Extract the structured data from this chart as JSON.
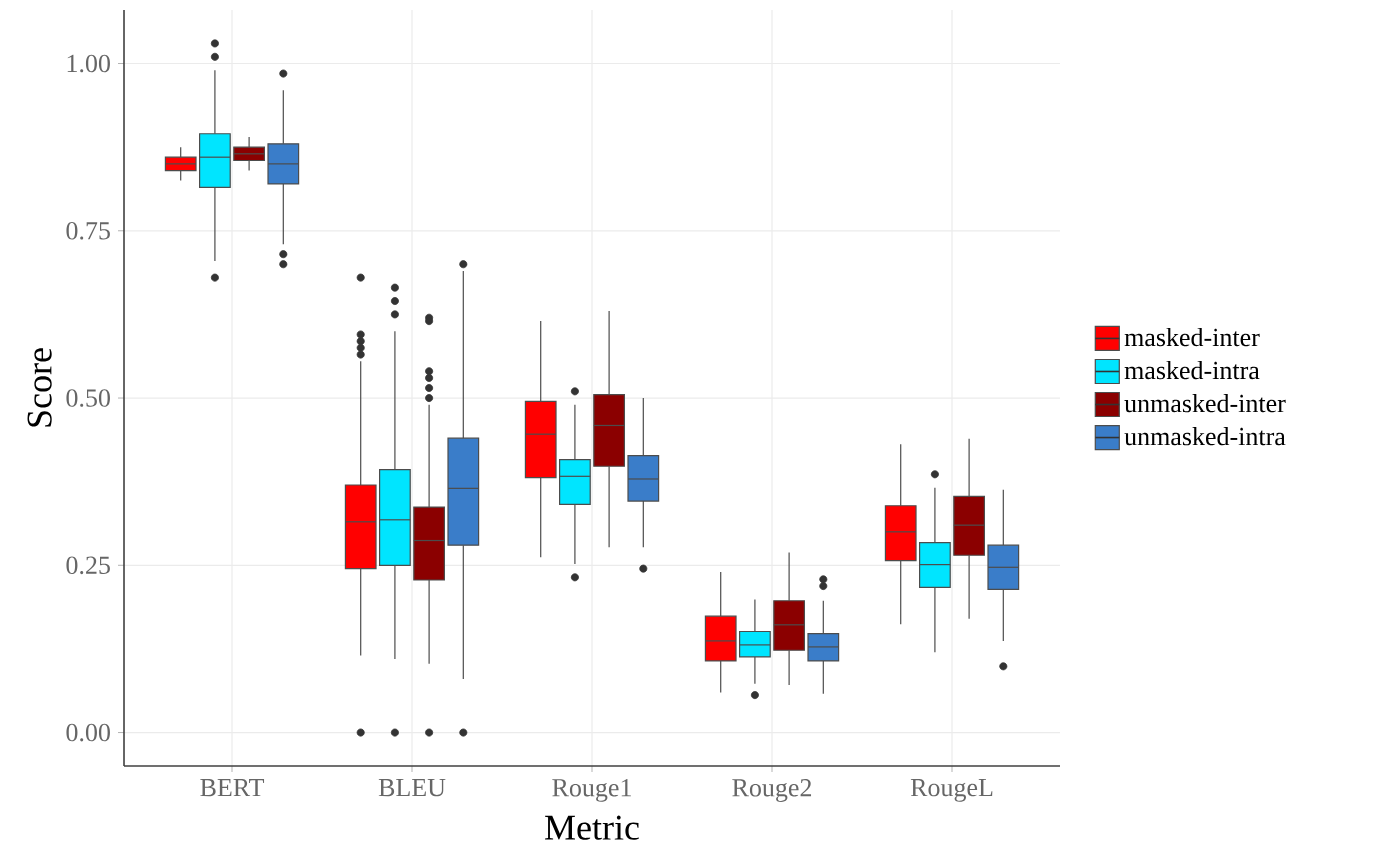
{
  "chart_data": {
    "type": "box",
    "xlabel": "Metric",
    "ylabel": "Score",
    "categories": [
      "BERT",
      "BLEU",
      "Rouge1",
      "Rouge2",
      "RougeL"
    ],
    "ylim": [
      -0.05,
      1.08
    ],
    "yticks": [
      {
        "value": 0,
        "label": "0.00"
      },
      {
        "value": 0.25,
        "label": "0.25"
      },
      {
        "value": 0.5,
        "label": "0.50"
      },
      {
        "value": 0.75,
        "label": "0.75"
      },
      {
        "value": 1,
        "label": "1.00"
      }
    ],
    "grid": true,
    "legend": "right",
    "series": [
      {
        "name": "masked-inter",
        "color": "#ff0000",
        "boxes": [
          {
            "low": 0.825,
            "q1": 0.84,
            "median": 0.85,
            "q3": 0.86,
            "high": 0.875
          },
          {
            "low": 0.115,
            "q1": 0.245,
            "median": 0.315,
            "q3": 0.37,
            "high": 0.555,
            "outliers": [
              0.68,
              0.595,
              0.585,
              0.575,
              0.565,
              0
            ]
          },
          {
            "low": 0.262,
            "q1": 0.381,
            "median": 0.446,
            "q3": 0.495,
            "high": 0.615
          },
          {
            "low": 0.06,
            "q1": 0.107,
            "median": 0.137,
            "q3": 0.174,
            "high": 0.24
          },
          {
            "low": 0.162,
            "q1": 0.257,
            "median": 0.3,
            "q3": 0.339,
            "high": 0.431
          }
        ]
      },
      {
        "name": "masked-intra",
        "color": "#00e5ff",
        "boxes": [
          {
            "low": 0.705,
            "q1": 0.815,
            "median": 0.86,
            "q3": 0.895,
            "high": 0.99,
            "outliers": [
              1.03,
              1.01,
              0.68
            ]
          },
          {
            "low": 0.11,
            "q1": 0.25,
            "median": 0.318,
            "q3": 0.393,
            "high": 0.6,
            "outliers": [
              0.665,
              0.645,
              0.625,
              0
            ]
          },
          {
            "low": 0.252,
            "q1": 0.341,
            "median": 0.383,
            "q3": 0.408,
            "high": 0.49,
            "outliers": [
              0.51,
              0.232
            ]
          },
          {
            "low": 0.073,
            "q1": 0.113,
            "median": 0.131,
            "q3": 0.151,
            "high": 0.199,
            "outliers": [
              0.056
            ]
          },
          {
            "low": 0.12,
            "q1": 0.217,
            "median": 0.251,
            "q3": 0.284,
            "high": 0.366,
            "outliers": [
              0.386
            ]
          }
        ]
      },
      {
        "name": "unmasked-inter",
        "color": "#8b0000",
        "boxes": [
          {
            "low": 0.84,
            "q1": 0.855,
            "median": 0.865,
            "q3": 0.875,
            "high": 0.89
          },
          {
            "low": 0.103,
            "q1": 0.228,
            "median": 0.287,
            "q3": 0.337,
            "high": 0.49,
            "outliers": [
              0.62,
              0.615,
              0.54,
              0.53,
              0.515,
              0.5,
              0
            ]
          },
          {
            "low": 0.277,
            "q1": 0.398,
            "median": 0.459,
            "q3": 0.505,
            "high": 0.63
          },
          {
            "low": 0.071,
            "q1": 0.123,
            "median": 0.161,
            "q3": 0.197,
            "high": 0.269
          },
          {
            "low": 0.17,
            "q1": 0.265,
            "median": 0.31,
            "q3": 0.353,
            "high": 0.439
          }
        ]
      },
      {
        "name": "unmasked-intra",
        "color": "#3a7dc9",
        "boxes": [
          {
            "low": 0.73,
            "q1": 0.82,
            "median": 0.85,
            "q3": 0.88,
            "high": 0.96,
            "outliers": [
              0.985,
              0.715,
              0.7
            ]
          },
          {
            "low": 0.08,
            "q1": 0.28,
            "median": 0.365,
            "q3": 0.44,
            "high": 0.69,
            "outliers": [
              0.7,
              0
            ]
          },
          {
            "low": 0.277,
            "q1": 0.346,
            "median": 0.379,
            "q3": 0.414,
            "high": 0.5,
            "outliers": [
              0.245
            ]
          },
          {
            "low": 0.058,
            "q1": 0.107,
            "median": 0.128,
            "q3": 0.148,
            "high": 0.197,
            "outliers": [
              0.229,
              0.219
            ]
          },
          {
            "low": 0.137,
            "q1": 0.214,
            "median": 0.247,
            "q3": 0.28,
            "high": 0.363,
            "outliers": [
              0.099
            ]
          }
        ]
      }
    ]
  }
}
